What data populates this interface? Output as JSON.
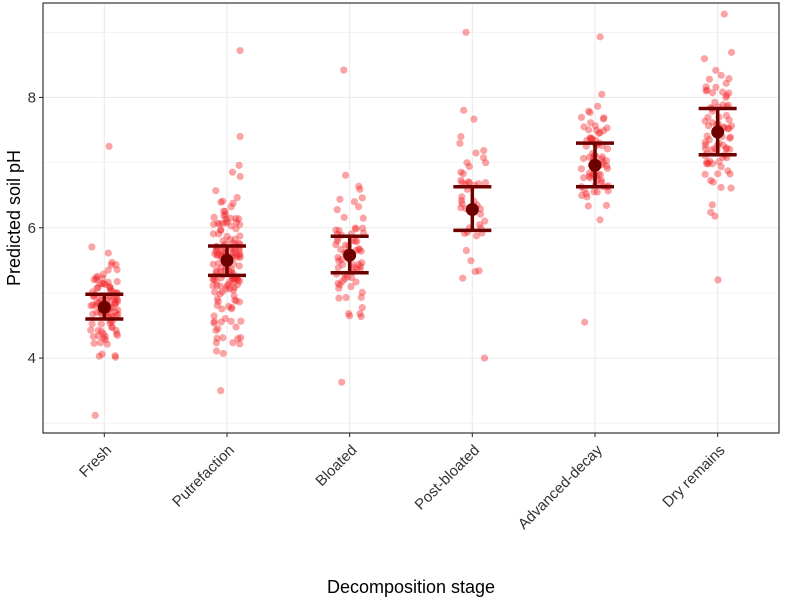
{
  "chart_data": {
    "type": "scatter",
    "title": "",
    "xlabel": "Decomposition stage",
    "ylabel": "Predicted soil pH",
    "categories": [
      "Fresh",
      "Putrefaction",
      "Bloated",
      "Post-bloated",
      "Advanced-decay",
      "Dry remains"
    ],
    "yticks": [
      4,
      6,
      8
    ],
    "ylim": [
      2.85,
      9.45
    ],
    "grid": true,
    "colors": {
      "points": "#f2262b",
      "summary": "#6e0000",
      "grid": "#ebebeb",
      "border": "#333333"
    },
    "summary": [
      {
        "category": "Fresh",
        "mean": 4.78,
        "lower": 4.6,
        "upper": 4.98
      },
      {
        "category": "Putrefaction",
        "mean": 5.5,
        "lower": 5.27,
        "upper": 5.72
      },
      {
        "category": "Bloated",
        "mean": 5.58,
        "lower": 5.31,
        "upper": 5.87
      },
      {
        "category": "Post-bloated",
        "mean": 6.28,
        "lower": 5.96,
        "upper": 6.63
      },
      {
        "category": "Advanced-decay",
        "mean": 6.96,
        "lower": 6.63,
        "upper": 7.3
      },
      {
        "category": "Dry remains",
        "mean": 7.47,
        "lower": 7.12,
        "upper": 7.83
      }
    ],
    "point_spread": [
      {
        "category": "Fresh",
        "n": 100,
        "min": 3.12,
        "max": 7.25,
        "mean": 4.78,
        "sd": 0.72
      },
      {
        "category": "Putrefaction",
        "n": 150,
        "min": 3.5,
        "max": 8.72,
        "mean": 5.5,
        "sd": 1.15
      },
      {
        "category": "Bloated",
        "n": 70,
        "min": 3.63,
        "max": 8.42,
        "mean": 5.58,
        "sd": 0.95
      },
      {
        "category": "Post-bloated",
        "n": 45,
        "min": 4.0,
        "max": 9.0,
        "mean": 6.28,
        "sd": 1.15
      },
      {
        "category": "Advanced-decay",
        "n": 75,
        "min": 4.55,
        "max": 8.93,
        "mean": 6.96,
        "sd": 0.95
      },
      {
        "category": "Dry remains",
        "n": 85,
        "min": 5.2,
        "max": 9.28,
        "mean": 7.47,
        "sd": 1.0
      }
    ]
  }
}
